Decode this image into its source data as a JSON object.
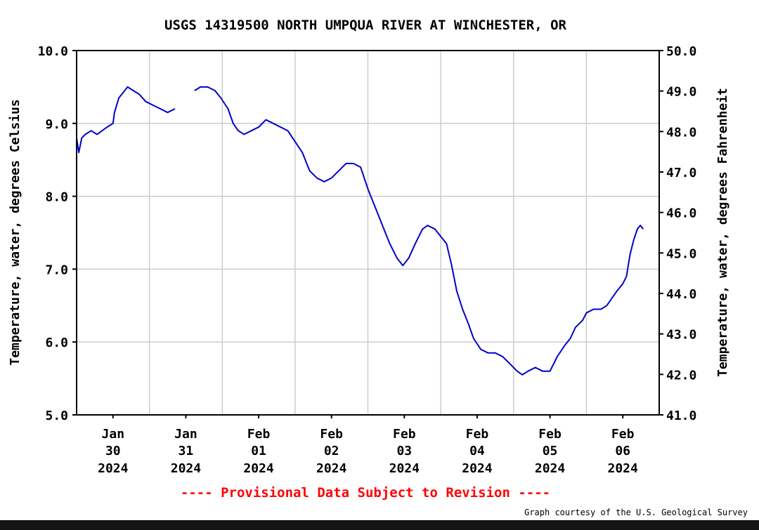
{
  "chart_data": {
    "type": "line",
    "title": "USGS 14319500 NORTH UMPQUA RIVER AT WINCHESTER, OR",
    "ylabel_left": "Temperature, water, degrees Celsius",
    "ylabel_right": "Temperature, water, degrees Fahrenheit",
    "ylim_left": [
      5.0,
      10.0
    ],
    "ylim_right": [
      41.0,
      50.0
    ],
    "yticks_left": [
      "5.0",
      "6.0",
      "7.0",
      "8.0",
      "9.0",
      "10.0"
    ],
    "yticks_right": [
      "41.0",
      "42.0",
      "43.0",
      "44.0",
      "45.0",
      "46.0",
      "47.0",
      "48.0",
      "49.0",
      "50.0"
    ],
    "x_unit": "days since 2024-01-29 12:00 (local)",
    "xlim": [
      0.0,
      8.0
    ],
    "x_ticks": [
      {
        "x": 0.5,
        "month": "Jan",
        "day": "30",
        "year": "2024"
      },
      {
        "x": 1.5,
        "month": "Jan",
        "day": "31",
        "year": "2024"
      },
      {
        "x": 2.5,
        "month": "Feb",
        "day": "01",
        "year": "2024"
      },
      {
        "x": 3.5,
        "month": "Feb",
        "day": "02",
        "year": "2024"
      },
      {
        "x": 4.5,
        "month": "Feb",
        "day": "03",
        "year": "2024"
      },
      {
        "x": 5.5,
        "month": "Feb",
        "day": "04",
        "year": "2024"
      },
      {
        "x": 6.5,
        "month": "Feb",
        "day": "05",
        "year": "2024"
      },
      {
        "x": 7.5,
        "month": "Feb",
        "day": "06",
        "year": "2024"
      }
    ],
    "grid": true,
    "line_color": "#0000cc",
    "series": [
      {
        "name": "",
        "segments": [
          [
            [
              0.0,
              8.8
            ],
            [
              0.03,
              8.6
            ],
            [
              0.07,
              8.8
            ],
            [
              0.12,
              8.85
            ],
            [
              0.2,
              8.9
            ],
            [
              0.28,
              8.85
            ],
            [
              0.35,
              8.9
            ],
            [
              0.42,
              8.95
            ],
            [
              0.5,
              9.0
            ],
            [
              0.52,
              9.15
            ],
            [
              0.58,
              9.35
            ],
            [
              0.66,
              9.45
            ],
            [
              0.7,
              9.5
            ],
            [
              0.78,
              9.45
            ],
            [
              0.86,
              9.4
            ],
            [
              0.95,
              9.3
            ],
            [
              1.05,
              9.25
            ],
            [
              1.15,
              9.2
            ],
            [
              1.25,
              9.15
            ],
            [
              1.35,
              9.2
            ]
          ],
          [
            [
              1.62,
              9.45
            ],
            [
              1.7,
              9.5
            ],
            [
              1.8,
              9.5
            ],
            [
              1.9,
              9.45
            ],
            [
              1.98,
              9.35
            ],
            [
              2.08,
              9.2
            ],
            [
              2.15,
              9.0
            ],
            [
              2.22,
              8.9
            ],
            [
              2.3,
              8.85
            ],
            [
              2.4,
              8.9
            ],
            [
              2.5,
              8.95
            ],
            [
              2.6,
              9.05
            ],
            [
              2.7,
              9.0
            ],
            [
              2.8,
              8.95
            ],
            [
              2.9,
              8.9
            ],
            [
              3.0,
              8.75
            ],
            [
              3.1,
              8.6
            ],
            [
              3.2,
              8.35
            ],
            [
              3.3,
              8.25
            ],
            [
              3.4,
              8.2
            ],
            [
              3.5,
              8.25
            ],
            [
              3.6,
              8.35
            ],
            [
              3.7,
              8.45
            ],
            [
              3.8,
              8.45
            ],
            [
              3.9,
              8.4
            ],
            [
              3.95,
              8.25
            ],
            [
              4.0,
              8.1
            ],
            [
              4.1,
              7.85
            ],
            [
              4.2,
              7.6
            ],
            [
              4.3,
              7.35
            ],
            [
              4.4,
              7.15
            ],
            [
              4.48,
              7.05
            ],
            [
              4.56,
              7.15
            ],
            [
              4.65,
              7.35
            ],
            [
              4.75,
              7.55
            ],
            [
              4.82,
              7.6
            ],
            [
              4.92,
              7.55
            ],
            [
              5.0,
              7.45
            ],
            [
              5.08,
              7.35
            ],
            [
              5.15,
              7.05
            ],
            [
              5.22,
              6.7
            ],
            [
              5.3,
              6.45
            ],
            [
              5.38,
              6.25
            ],
            [
              5.45,
              6.05
            ],
            [
              5.55,
              5.9
            ],
            [
              5.65,
              5.85
            ],
            [
              5.75,
              5.85
            ],
            [
              5.85,
              5.8
            ],
            [
              5.95,
              5.7
            ],
            [
              6.05,
              5.6
            ],
            [
              6.12,
              5.55
            ],
            [
              6.2,
              5.6
            ],
            [
              6.3,
              5.65
            ],
            [
              6.4,
              5.6
            ],
            [
              6.5,
              5.6
            ],
            [
              6.6,
              5.8
            ],
            [
              6.7,
              5.95
            ],
            [
              6.78,
              6.05
            ],
            [
              6.85,
              6.2
            ],
            [
              6.95,
              6.3
            ],
            [
              7.0,
              6.4
            ],
            [
              7.1,
              6.45
            ],
            [
              7.2,
              6.45
            ],
            [
              7.28,
              6.5
            ],
            [
              7.35,
              6.6
            ],
            [
              7.42,
              6.7
            ],
            [
              7.5,
              6.8
            ],
            [
              7.55,
              6.9
            ],
            [
              7.6,
              7.2
            ],
            [
              7.65,
              7.4
            ],
            [
              7.7,
              7.55
            ],
            [
              7.74,
              7.6
            ],
            [
              7.78,
              7.55
            ]
          ]
        ]
      }
    ]
  },
  "footer": {
    "provisional": "---- Provisional Data Subject to Revision ----",
    "courtesy": "Graph courtesy of the U.S. Geological Survey"
  }
}
